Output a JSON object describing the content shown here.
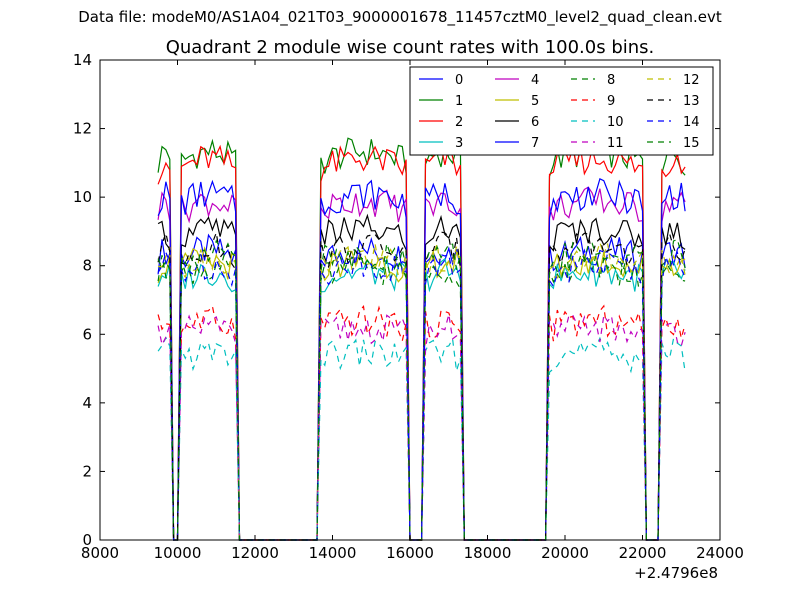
{
  "suptitle": "Data file: modeM0/AS1A04_021T03_9000001678_11457cztM0_level2_quad_clean.evt",
  "chart_data": {
    "type": "line",
    "title": "Quadrant 2 module wise count rates with 100.0s bins.",
    "xlabel": "",
    "ylabel": "",
    "x_offset_label": "+2.4796e8",
    "xlim": [
      8000,
      24000
    ],
    "ylim": [
      0,
      14
    ],
    "xticks": [
      8000,
      10000,
      12000,
      14000,
      16000,
      18000,
      20000,
      22000,
      24000
    ],
    "yticks": [
      0,
      2,
      4,
      6,
      8,
      10,
      12,
      14
    ],
    "grid": false,
    "legend_position": "top-right",
    "legend_columns": 4,
    "segments": [
      {
        "x_start": 9500,
        "x_end": 9850
      },
      {
        "x_start": 10050,
        "x_end": 11550
      },
      {
        "x_start": 13650,
        "x_end": 15950
      },
      {
        "x_start": 16350,
        "x_end": 17350
      },
      {
        "x_start": 19550,
        "x_end": 22050
      },
      {
        "x_start": 22450,
        "x_end": 23150
      }
    ],
    "gaps": [
      [
        9850,
        10050
      ],
      [
        11550,
        13650
      ],
      [
        15950,
        16350
      ],
      [
        17350,
        19550
      ],
      [
        22050,
        22450
      ]
    ],
    "series": [
      {
        "name": "0",
        "color": "#0000ff",
        "dash": "solid",
        "level": 8.2
      },
      {
        "name": "1",
        "color": "#008000",
        "dash": "solid",
        "level": 11.0
      },
      {
        "name": "2",
        "color": "#ff0000",
        "dash": "solid",
        "level": 10.8
      },
      {
        "name": "3",
        "color": "#00bfbf",
        "dash": "solid",
        "level": 7.6
      },
      {
        "name": "4",
        "color": "#bf00bf",
        "dash": "solid",
        "level": 9.6
      },
      {
        "name": "5",
        "color": "#bfbf00",
        "dash": "solid",
        "level": 7.9
      },
      {
        "name": "6",
        "color": "#000000",
        "dash": "solid",
        "level": 8.8
      },
      {
        "name": "7",
        "color": "#0000ff",
        "dash": "solid",
        "level": 9.8
      },
      {
        "name": "8",
        "color": "#008000",
        "dash": "dashed",
        "level": 7.7
      },
      {
        "name": "9",
        "color": "#ff0000",
        "dash": "dashed",
        "level": 6.2
      },
      {
        "name": "10",
        "color": "#00bfbf",
        "dash": "dashed",
        "level": 5.3
      },
      {
        "name": "11",
        "color": "#bf00bf",
        "dash": "dashed",
        "level": 6.0
      },
      {
        "name": "12",
        "color": "#bfbf00",
        "dash": "dashed",
        "level": 8.0
      },
      {
        "name": "13",
        "color": "#000000",
        "dash": "dashed",
        "level": 8.3
      },
      {
        "name": "14",
        "color": "#0000ff",
        "dash": "dashed",
        "level": 7.8
      },
      {
        "name": "15",
        "color": "#008000",
        "dash": "dashed",
        "level": 8.1
      }
    ]
  }
}
